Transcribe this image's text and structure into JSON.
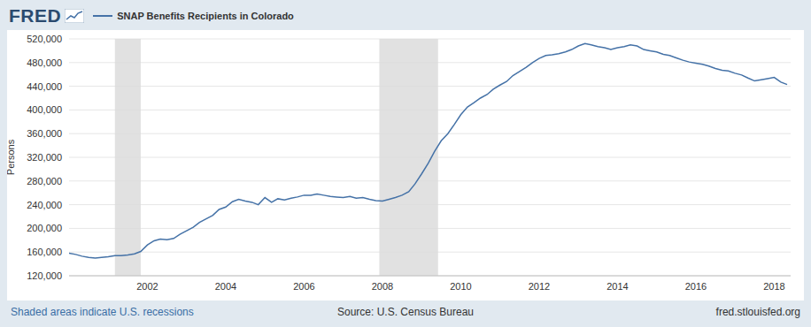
{
  "chart_data": {
    "type": "line",
    "logo": "FRED",
    "y_label": "Persons",
    "note": "Shaded areas indicate U.S. recessions",
    "source": "Source: U.S. Census Bureau",
    "credit": "fred.stlouisfed.org",
    "legend": "top",
    "grid": true,
    "xlim": [
      2000,
      2018.42
    ],
    "xticks": [
      2002,
      2004,
      2006,
      2008,
      2010,
      2012,
      2014,
      2016,
      2018
    ],
    "ylim": [
      120000,
      520000
    ],
    "yticks": [
      {
        "value": 120000,
        "label": "120,000"
      },
      {
        "value": 160000,
        "label": "160,000"
      },
      {
        "value": 200000,
        "label": "200,000"
      },
      {
        "value": 240000,
        "label": "240,000"
      },
      {
        "value": 280000,
        "label": "280,000"
      },
      {
        "value": 320000,
        "label": "320,000"
      },
      {
        "value": 360000,
        "label": "360,000"
      },
      {
        "value": 400000,
        "label": "400,000"
      },
      {
        "value": 440000,
        "label": "440,000"
      },
      {
        "value": 480000,
        "label": "480,000"
      },
      {
        "value": 520000,
        "label": "520,000"
      }
    ],
    "recessions": [
      [
        2001.17,
        2001.83
      ],
      [
        2007.92,
        2009.42
      ]
    ],
    "x": [
      2000.0,
      2000.17,
      2000.33,
      2000.5,
      2000.67,
      2000.83,
      2001.0,
      2001.17,
      2001.33,
      2001.5,
      2001.67,
      2001.83,
      2002.0,
      2002.17,
      2002.33,
      2002.5,
      2002.67,
      2002.83,
      2003.0,
      2003.17,
      2003.33,
      2003.5,
      2003.67,
      2003.83,
      2004.0,
      2004.17,
      2004.33,
      2004.5,
      2004.67,
      2004.83,
      2005.0,
      2005.17,
      2005.33,
      2005.5,
      2005.67,
      2005.83,
      2006.0,
      2006.17,
      2006.33,
      2006.5,
      2006.67,
      2006.83,
      2007.0,
      2007.17,
      2007.33,
      2007.5,
      2007.67,
      2007.83,
      2008.0,
      2008.17,
      2008.33,
      2008.5,
      2008.67,
      2008.83,
      2009.0,
      2009.17,
      2009.33,
      2009.5,
      2009.67,
      2009.83,
      2010.0,
      2010.17,
      2010.33,
      2010.5,
      2010.67,
      2010.83,
      2011.0,
      2011.17,
      2011.33,
      2011.5,
      2011.67,
      2011.83,
      2012.0,
      2012.17,
      2012.33,
      2012.5,
      2012.67,
      2012.83,
      2013.0,
      2013.17,
      2013.33,
      2013.5,
      2013.67,
      2013.83,
      2014.0,
      2014.17,
      2014.33,
      2014.5,
      2014.67,
      2014.83,
      2015.0,
      2015.17,
      2015.33,
      2015.5,
      2015.67,
      2015.83,
      2016.0,
      2016.17,
      2016.33,
      2016.5,
      2016.67,
      2016.83,
      2017.0,
      2017.17,
      2017.33,
      2017.5,
      2017.67,
      2017.83,
      2018.0,
      2018.17,
      2018.33
    ],
    "series": [
      {
        "name": "SNAP Benefits Recipients in Colorado",
        "color": "#4572a7",
        "values": [
          158000,
          156000,
          153000,
          151000,
          150000,
          151000,
          152000,
          154000,
          154000,
          155000,
          157000,
          161000,
          172000,
          179000,
          182000,
          181000,
          183000,
          190000,
          196000,
          202000,
          210000,
          216000,
          222000,
          232000,
          236000,
          245000,
          249000,
          246000,
          244000,
          240000,
          252000,
          244000,
          250000,
          248000,
          251000,
          253000,
          256000,
          256000,
          258000,
          256000,
          254000,
          253000,
          252000,
          254000,
          251000,
          252000,
          249000,
          247000,
          246000,
          249000,
          252000,
          256000,
          262000,
          275000,
          292000,
          310000,
          330000,
          348000,
          360000,
          375000,
          392000,
          405000,
          412000,
          420000,
          426000,
          435000,
          442000,
          448000,
          458000,
          465000,
          472000,
          480000,
          487000,
          492000,
          493000,
          495000,
          498000,
          502000,
          508000,
          512000,
          510000,
          507000,
          505000,
          502000,
          505000,
          507000,
          510000,
          508000,
          502000,
          500000,
          498000,
          494000,
          492000,
          488000,
          484000,
          481000,
          479000,
          477000,
          474000,
          470000,
          467000,
          466000,
          462000,
          459000,
          454000,
          449000,
          451000,
          453000,
          455000,
          447000,
          443000
        ]
      }
    ]
  }
}
